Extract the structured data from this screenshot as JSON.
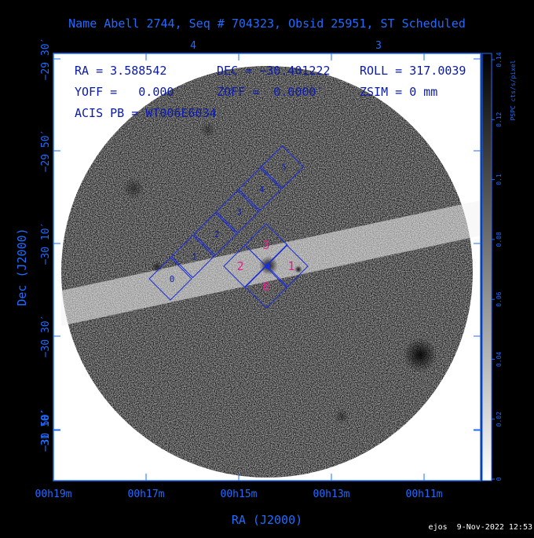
{
  "title": "Name Abell 2744, Seq # 704323, Obsid 25951, ST Scheduled",
  "info": {
    "ra": "RA = 3.588542",
    "dec": "DEC = −30.401222",
    "roll": "ROLL = 317.0039",
    "yoff": "YOFF =   0.000′",
    "zoff": "ZOFF =  0.0000′",
    "zsim": "ZSIM = 0 mm",
    "acis": "ACIS PB = WT006E6034"
  },
  "axes": {
    "xlabel": "RA (J2000)",
    "ylabel": "Dec (J2000)",
    "x_ticks": [
      "00h19m",
      "00h17m",
      "00h15m",
      "00h13m",
      "00h11m"
    ],
    "y_ticks": [
      "−29 30′",
      "−29 50′",
      "−30 10′",
      "−30 30′",
      "−30 50′",
      "−31 10′"
    ],
    "top_ticks": [
      "4",
      "3"
    ]
  },
  "colorbar": {
    "label": "PSPC cts/s/pixel",
    "ticks": [
      "0",
      "0.02",
      "0.04",
      "0.06",
      "0.08",
      "0.1",
      "0.12",
      "0.14"
    ]
  },
  "chips_small": [
    "0",
    "1",
    "2",
    "3",
    "4",
    "5"
  ],
  "chips_large": [
    "0",
    "1",
    "2",
    "3"
  ],
  "footer": "ejos  9-Nov-2022 12:53",
  "colors": {
    "background": "#000000",
    "axis": "#1f6bff",
    "chip_outline": "#1a2dd6",
    "large_chip_label": "#e0208a"
  }
}
